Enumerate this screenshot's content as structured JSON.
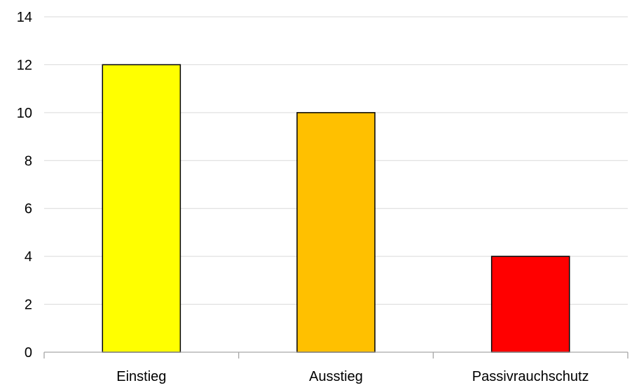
{
  "chart_data": {
    "type": "bar",
    "categories": [
      "Einstieg",
      "Ausstieg",
      "Passivrauchschutz"
    ],
    "values": [
      12,
      10,
      4
    ],
    "bar_colors": [
      "#ffff00",
      "#ffc000",
      "#ff0000"
    ],
    "bar_outline": "#000000",
    "gridline_color": "#d9d9d9",
    "axis_color": "#a6a6a6",
    "title": "",
    "xlabel": "",
    "ylabel": "",
    "ylim": [
      0,
      14
    ],
    "yticks": [
      0,
      2,
      4,
      6,
      8,
      10,
      12,
      14
    ],
    "grid": true,
    "legend": "none"
  }
}
